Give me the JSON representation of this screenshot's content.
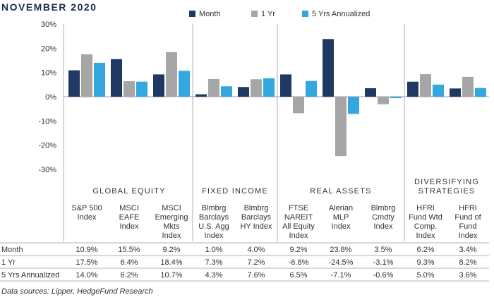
{
  "title": "NOVEMBER 2020",
  "footer": "Data sources: Lipper, HedgeFund Research",
  "colors": {
    "month": "#1f3864",
    "yr1": "#a6a6a6",
    "yr5": "#33a8e0",
    "divider": "#b0b0b0"
  },
  "chart_data": {
    "type": "bar",
    "title": "NOVEMBER 2020",
    "legend": "top",
    "grid": false,
    "ylim": [
      -30,
      30
    ],
    "yticks": [
      "30%",
      "20%",
      "10%",
      "0%",
      "-10%",
      "-20%",
      "-30%"
    ],
    "ytick_values": [
      30,
      20,
      10,
      0,
      -10,
      -20,
      -30
    ],
    "groups": [
      {
        "name": "GLOBAL EQUITY",
        "count": 3
      },
      {
        "name": "FIXED INCOME",
        "count": 2
      },
      {
        "name": "REAL ASSETS",
        "count": 3
      },
      {
        "name": "DIVERSIFYING STRATEGIES",
        "count": 2,
        "lines": [
          "DIVERSIFYING",
          "STRATEGIES"
        ]
      }
    ],
    "categories": [
      [
        "S&P 500",
        "Index"
      ],
      [
        "MSCI",
        "EAFE",
        "Index"
      ],
      [
        "MSCI",
        "Emerging",
        "Mkts",
        "Index"
      ],
      [
        "Blmbrg",
        "Barclays",
        "U.S. Agg",
        "Index"
      ],
      [
        "Blmbrg",
        "Barclays",
        "HY Index"
      ],
      [
        "FTSE",
        "NAREIT",
        "All Equity",
        "Index"
      ],
      [
        "Alerian",
        "MLP",
        "Index"
      ],
      [
        "Blmbrg",
        "Cmdty",
        "Index"
      ],
      [
        "HFRI",
        "Fund Wtd",
        "Comp.",
        "Index"
      ],
      [
        "HFRI",
        "Fund of",
        "Fund",
        "Index"
      ]
    ],
    "series": [
      {
        "name": "Month",
        "values": [
          10.9,
          15.5,
          9.2,
          1.0,
          4.0,
          9.2,
          23.8,
          3.5,
          6.2,
          3.4
        ],
        "labels": [
          "10.9%",
          "15.5%",
          "9.2%",
          "1.0%",
          "4.0%",
          "9.2%",
          "23.8%",
          "3.5%",
          "6.2%",
          "3.4%"
        ]
      },
      {
        "name": "1 Yr",
        "values": [
          17.5,
          6.4,
          18.4,
          7.3,
          7.2,
          -6.8,
          -24.5,
          -3.1,
          9.3,
          8.2
        ],
        "labels": [
          "17.5%",
          "6.4%",
          "18.4%",
          "7.3%",
          "7.2%",
          "-6.8%",
          "-24.5%",
          "-3.1%",
          "9.3%",
          "8.2%"
        ]
      },
      {
        "name": "5 Yrs Annualized",
        "values": [
          14.0,
          6.2,
          10.7,
          4.3,
          7.6,
          6.5,
          -7.1,
          -0.6,
          5.0,
          3.6
        ],
        "labels": [
          "14.0%",
          "6.2%",
          "10.7%",
          "4.3%",
          "7.6%",
          "6.5%",
          "-7.1%",
          "-0.6%",
          "5.0%",
          "3.6%"
        ]
      }
    ]
  }
}
